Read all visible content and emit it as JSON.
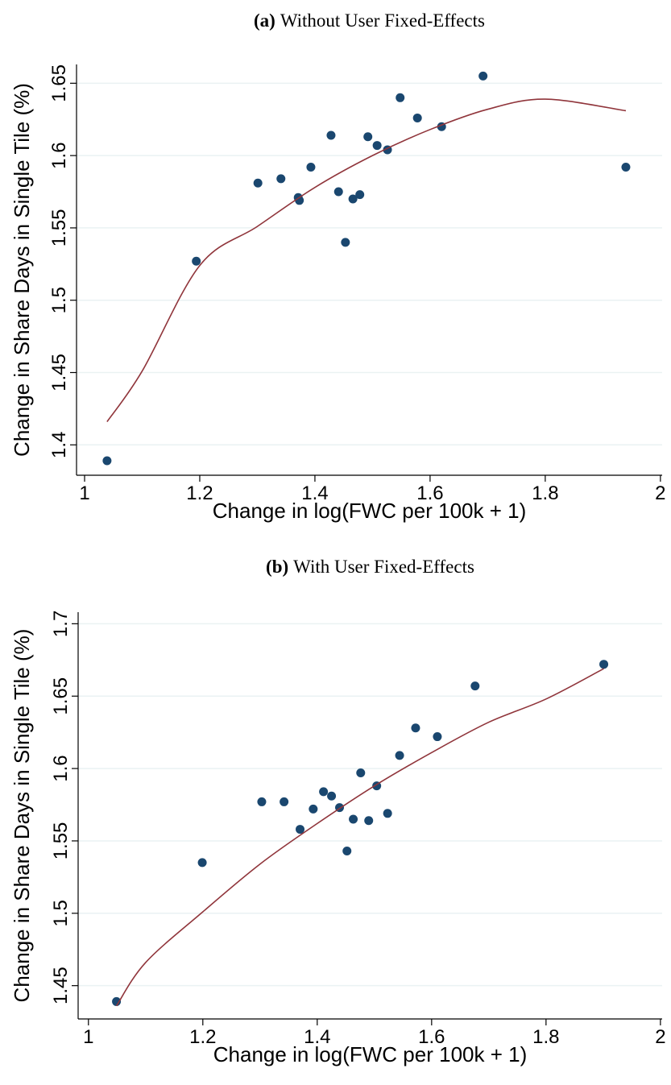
{
  "chart_data": [
    {
      "type": "scatter",
      "panel": "(a)",
      "title": "Without User Fixed-Effects",
      "x_label": "Change in log(FWC per 100k + 1)",
      "y_label": "Change in Share Days in Single Tile (%)",
      "xlim": [
        0.986,
        2.003
      ],
      "ylim": [
        1.379,
        1.663
      ],
      "xticks": [
        1,
        1.2,
        1.4,
        1.6,
        1.8,
        2
      ],
      "yticks": [
        1.4,
        1.45,
        1.5,
        1.55,
        1.6,
        1.65
      ],
      "grid": true,
      "points": {
        "color": "#1a476f",
        "x": [
          1.039,
          1.194,
          1.301,
          1.341,
          1.371,
          1.393,
          1.373,
          1.428,
          1.441,
          1.453,
          1.466,
          1.478,
          1.492,
          1.508,
          1.526,
          1.548,
          1.578,
          1.62,
          1.692,
          1.94
        ],
        "y": [
          1.389,
          1.527,
          1.581,
          1.584,
          1.571,
          1.592,
          1.569,
          1.614,
          1.575,
          1.54,
          1.57,
          1.573,
          1.613,
          1.607,
          1.604,
          1.64,
          1.626,
          1.62,
          1.655,
          1.592
        ]
      },
      "fit": {
        "color": "#90353b",
        "x": [
          1.039,
          1.1,
          1.2,
          1.3,
          1.4,
          1.5,
          1.6,
          1.7,
          1.8,
          1.94
        ],
        "y": [
          1.416,
          1.451,
          1.524,
          1.551,
          1.578,
          1.6,
          1.618,
          1.632,
          1.639,
          1.631
        ]
      }
    },
    {
      "type": "scatter",
      "panel": "(b)",
      "title": "With User Fixed-Effects",
      "x_label": "Change in log(FWC per 100k + 1)",
      "y_label": "Change in Share Days in Single Tile (%)",
      "xlim": [
        0.982,
        2.003
      ],
      "ylim": [
        1.427,
        1.708
      ],
      "xticks": [
        1,
        1.2,
        1.4,
        1.6,
        1.8,
        2
      ],
      "yticks": [
        1.45,
        1.5,
        1.55,
        1.6,
        1.65,
        1.7
      ],
      "grid": true,
      "points": {
        "color": "#1a476f",
        "x": [
          1.049,
          1.199,
          1.303,
          1.342,
          1.37,
          1.393,
          1.411,
          1.425,
          1.439,
          1.452,
          1.463,
          1.476,
          1.49,
          1.504,
          1.523,
          1.544,
          1.572,
          1.61,
          1.676,
          1.901
        ],
        "y": [
          1.439,
          1.535,
          1.577,
          1.577,
          1.558,
          1.572,
          1.584,
          1.581,
          1.573,
          1.543,
          1.565,
          1.597,
          1.564,
          1.588,
          1.569,
          1.609,
          1.628,
          1.622,
          1.657,
          1.672
        ]
      },
      "fit": {
        "color": "#90353b",
        "x": [
          1.049,
          1.1,
          1.2,
          1.3,
          1.4,
          1.5,
          1.6,
          1.7,
          1.8,
          1.901
        ],
        "y": [
          1.436,
          1.466,
          1.501,
          1.534,
          1.562,
          1.588,
          1.611,
          1.632,
          1.648,
          1.669
        ]
      }
    }
  ]
}
